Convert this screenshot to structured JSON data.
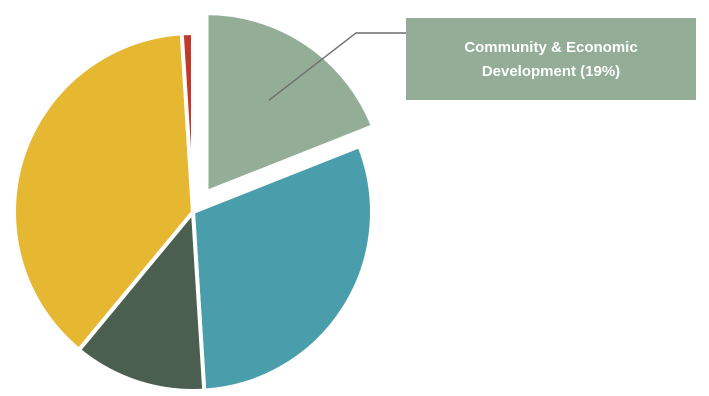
{
  "chart_data": {
    "type": "pie",
    "title": "",
    "series": [
      {
        "values": [
          19,
          30,
          12,
          38,
          1
        ],
        "colors": [
          "#93ad97",
          "#4a9eac",
          "#4a5f4f",
          "#e6b731",
          "#c0392b"
        ],
        "exploded_slice": 0
      }
    ],
    "annotations": [
      {
        "slice": 0,
        "lines": [
          "Community & Economic",
          "Development (19%)"
        ]
      }
    ],
    "legend": "none",
    "start_angle_deg": 0,
    "direction": "clockwise"
  }
}
